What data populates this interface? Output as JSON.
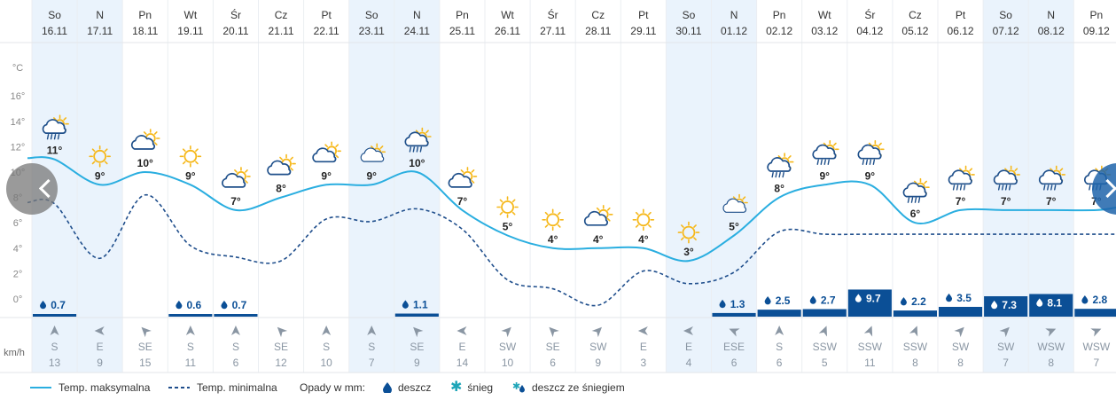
{
  "chart_data": {
    "type": "line",
    "y_axis_unit": "°C",
    "y_ticks": [
      "16°",
      "14°",
      "12°",
      "10°",
      "8°",
      "6°",
      "4°",
      "2°",
      "0°"
    ],
    "ylim": [
      0,
      18
    ],
    "days": [
      {
        "dow": "So",
        "date": "16.11",
        "max": 11,
        "max_label": "11°",
        "min": 7.5,
        "rain": 0.7,
        "rain_label": "0.7",
        "wind_dir": "S",
        "wind_speed": "13",
        "weekend": true,
        "icon": "partly-sunny-rain-icon",
        "rot": 0
      },
      {
        "dow": "N",
        "date": "17.11",
        "max": 9,
        "max_label": "9°",
        "min": 3.2,
        "rain": null,
        "rain_label": "",
        "wind_dir": "E",
        "wind_speed": "9",
        "weekend": true,
        "icon": "sun-icon",
        "rot": -90
      },
      {
        "dow": "Pn",
        "date": "18.11",
        "max": 10,
        "max_label": "10°",
        "min": 8.2,
        "rain": null,
        "rain_label": "",
        "wind_dir": "SE",
        "wind_speed": "15",
        "weekend": false,
        "icon": "partly-cloudy-icon",
        "rot": -45
      },
      {
        "dow": "Wt",
        "date": "19.11",
        "max": 9,
        "max_label": "9°",
        "min": 4.2,
        "rain": 0.6,
        "rain_label": "0.6",
        "wind_dir": "S",
        "wind_speed": "11",
        "weekend": false,
        "icon": "sun-icon",
        "rot": 0
      },
      {
        "dow": "Śr",
        "date": "20.11",
        "max": 7,
        "max_label": "7°",
        "min": 3.3,
        "rain": 0.7,
        "rain_label": "0.7",
        "wind_dir": "S",
        "wind_speed": "6",
        "weekend": false,
        "icon": "partly-cloudy-icon",
        "rot": 0
      },
      {
        "dow": "Cz",
        "date": "21.11",
        "max": 8,
        "max_label": "8°",
        "min": 3,
        "rain": null,
        "rain_label": "",
        "wind_dir": "SE",
        "wind_speed": "12",
        "weekend": false,
        "icon": "partly-cloudy-icon",
        "rot": -45
      },
      {
        "dow": "Pt",
        "date": "22.11",
        "max": 9,
        "max_label": "9°",
        "min": 6.3,
        "rain": null,
        "rain_label": "",
        "wind_dir": "S",
        "wind_speed": "10",
        "weekend": false,
        "icon": "partly-cloudy-icon",
        "rot": 0
      },
      {
        "dow": "So",
        "date": "23.11",
        "max": 9,
        "max_label": "9°",
        "min": 6.1,
        "rain": null,
        "rain_label": "",
        "wind_dir": "S",
        "wind_speed": "7",
        "weekend": true,
        "icon": "partly-cloudy-light-icon",
        "rot": 0
      },
      {
        "dow": "N",
        "date": "24.11",
        "max": 10,
        "max_label": "10°",
        "min": 7.1,
        "rain": 1.1,
        "rain_label": "1.1",
        "wind_dir": "SE",
        "wind_speed": "9",
        "weekend": true,
        "icon": "partly-sunny-rain-icon",
        "rot": -45
      },
      {
        "dow": "Pn",
        "date": "25.11",
        "max": 7,
        "max_label": "7°",
        "min": 5.5,
        "rain": null,
        "rain_label": "",
        "wind_dir": "E",
        "wind_speed": "14",
        "weekend": false,
        "icon": "partly-cloudy-icon",
        "rot": -90
      },
      {
        "dow": "Wt",
        "date": "26.11",
        "max": 5,
        "max_label": "5°",
        "min": 1.5,
        "rain": null,
        "rain_label": "",
        "wind_dir": "SW",
        "wind_speed": "10",
        "weekend": false,
        "icon": "sun-icon",
        "rot": 45
      },
      {
        "dow": "Śr",
        "date": "27.11",
        "max": 4,
        "max_label": "4°",
        "min": 0.8,
        "rain": null,
        "rain_label": "",
        "wind_dir": "SE",
        "wind_speed": "6",
        "weekend": false,
        "icon": "sun-icon",
        "rot": -45
      },
      {
        "dow": "Cz",
        "date": "28.11",
        "max": 4,
        "max_label": "4°",
        "min": -0.5,
        "rain": null,
        "rain_label": "",
        "wind_dir": "SW",
        "wind_speed": "9",
        "weekend": false,
        "icon": "partly-cloudy-icon",
        "rot": 45
      },
      {
        "dow": "Pt",
        "date": "29.11",
        "max": 4,
        "max_label": "4°",
        "min": 2.2,
        "rain": null,
        "rain_label": "",
        "wind_dir": "E",
        "wind_speed": "3",
        "weekend": false,
        "icon": "sun-icon",
        "rot": -90
      },
      {
        "dow": "So",
        "date": "30.11",
        "max": 3,
        "max_label": "3°",
        "min": 1.2,
        "rain": null,
        "rain_label": "",
        "wind_dir": "E",
        "wind_speed": "4",
        "weekend": true,
        "icon": "sun-icon",
        "rot": -90
      },
      {
        "dow": "N",
        "date": "01.12",
        "max": 5,
        "max_label": "5°",
        "min": 2.1,
        "rain": 1.3,
        "rain_label": "1.3",
        "wind_dir": "ESE",
        "wind_speed": "6",
        "weekend": true,
        "icon": "partly-cloudy-light-icon",
        "rot": -67
      },
      {
        "dow": "Pn",
        "date": "02.12",
        "max": 8,
        "max_label": "8°",
        "min": 5.3,
        "rain": 2.5,
        "rain_label": "2.5",
        "wind_dir": "S",
        "wind_speed": "6",
        "weekend": false,
        "icon": "partly-sunny-rain-icon",
        "rot": 0
      },
      {
        "dow": "Wt",
        "date": "03.12",
        "max": 9,
        "max_label": "9°",
        "min": 5.1,
        "rain": 2.7,
        "rain_label": "2.7",
        "wind_dir": "SSW",
        "wind_speed": "5",
        "weekend": false,
        "icon": "partly-sunny-rain-icon",
        "rot": 22
      },
      {
        "dow": "Śr",
        "date": "04.12",
        "max": 9,
        "max_label": "9°",
        "min": 5.1,
        "rain": 9.7,
        "rain_label": "9.7",
        "wind_dir": "SSW",
        "wind_speed": "11",
        "weekend": false,
        "icon": "partly-sunny-rain-icon",
        "rot": 22
      },
      {
        "dow": "Cz",
        "date": "05.12",
        "max": 6,
        "max_label": "6°",
        "min": 5.1,
        "rain": 2.2,
        "rain_label": "2.2",
        "wind_dir": "SSW",
        "wind_speed": "8",
        "weekend": false,
        "icon": "partly-sunny-rain-icon",
        "rot": 22
      },
      {
        "dow": "Pt",
        "date": "06.12",
        "max": 7,
        "max_label": "7°",
        "min": 5.1,
        "rain": 3.5,
        "rain_label": "3.5",
        "wind_dir": "SW",
        "wind_speed": "8",
        "weekend": false,
        "icon": "partly-sunny-rain-icon",
        "rot": 45
      },
      {
        "dow": "So",
        "date": "07.12",
        "max": 7,
        "max_label": "7°",
        "min": 5.1,
        "rain": 7.3,
        "rain_label": "7.3",
        "wind_dir": "SW",
        "wind_speed": "7",
        "weekend": true,
        "icon": "partly-sunny-rain-icon",
        "rot": 45
      },
      {
        "dow": "N",
        "date": "08.12",
        "max": 7,
        "max_label": "7°",
        "min": 5.1,
        "rain": 8.1,
        "rain_label": "8.1",
        "wind_dir": "WSW",
        "wind_speed": "8",
        "weekend": true,
        "icon": "partly-sunny-rain-icon",
        "rot": 67
      },
      {
        "dow": "Pn",
        "date": "09.12",
        "max": 7,
        "max_label": "7°",
        "min": 5.1,
        "rain": 2.8,
        "rain_label": "2.8",
        "wind_dir": "WSW",
        "wind_speed": "7",
        "weekend": false,
        "icon": "partly-sunny-rain-icon",
        "rot": 67
      }
    ],
    "wind_unit": "km/h",
    "series": [
      {
        "name": "Temp. maksymalna",
        "style": "solid",
        "color": "#2aaee0"
      },
      {
        "name": "Temp. minimalna",
        "style": "dashed",
        "color": "#1f4e8c"
      }
    ]
  },
  "legend": {
    "max_label": "Temp. maksymalna",
    "min_label": "Temp. minimalna",
    "precip_title": "Opady w mm:",
    "rain_label": "deszcz",
    "snow_label": "śnieg",
    "sleet_label": "deszcz ze śniegiem"
  },
  "colors": {
    "max_line": "#2aaee0",
    "min_line": "#1f4e8c",
    "rain_bar": "#0b4f96",
    "weekend_bg": "#eaf3fc",
    "sun": "#f6b81a",
    "cloud": "#1e4f8a",
    "snow": "#1ea5b8"
  }
}
